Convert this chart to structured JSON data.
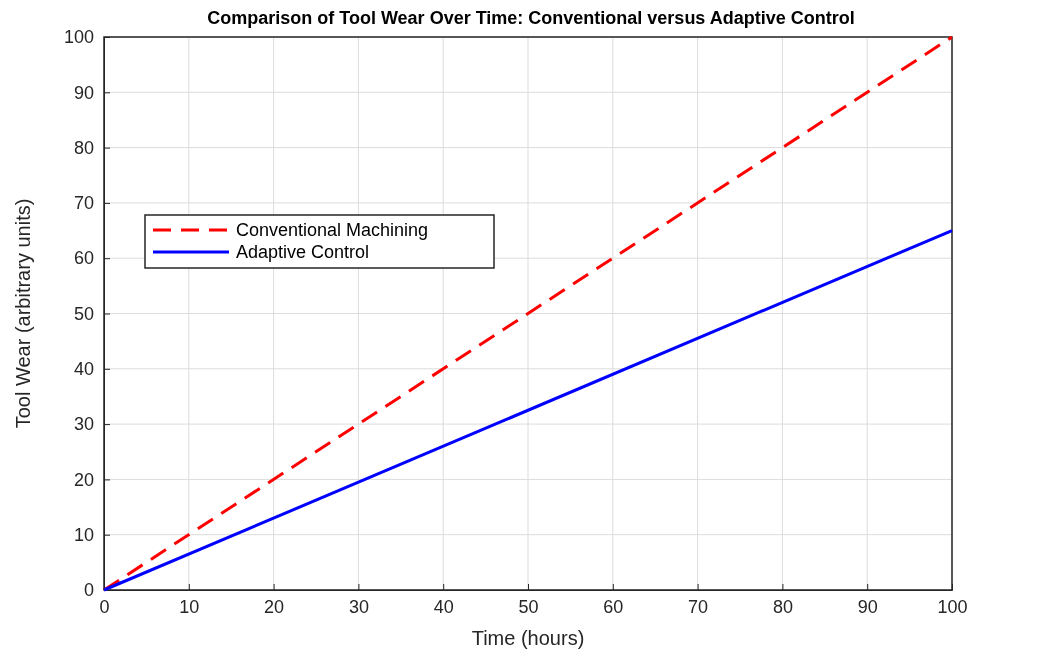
{
  "chart_data": {
    "type": "line",
    "title": "Comparison of Tool Wear Over Time: Conventional versus Adaptive Control",
    "xlabel": "Time (hours)",
    "ylabel": "Tool Wear (arbitrary units)",
    "x": [
      0,
      100
    ],
    "series": [
      {
        "name": "Conventional Machining",
        "color": "#ff0000",
        "values": [
          0,
          100
        ],
        "line_style": "dashed"
      },
      {
        "name": "Adaptive Control",
        "color": "#0000ff",
        "values": [
          0,
          65
        ],
        "line_style": "solid"
      }
    ],
    "xlim": [
      0,
      100
    ],
    "xticks": [
      0,
      10,
      20,
      30,
      40,
      50,
      60,
      70,
      80,
      90,
      100
    ],
    "ylim": [
      0,
      100
    ],
    "yticks": [
      0,
      10,
      20,
      30,
      40,
      50,
      60,
      70,
      80,
      90,
      100
    ],
    "grid": true,
    "legend": "top left",
    "marker": "none"
  }
}
